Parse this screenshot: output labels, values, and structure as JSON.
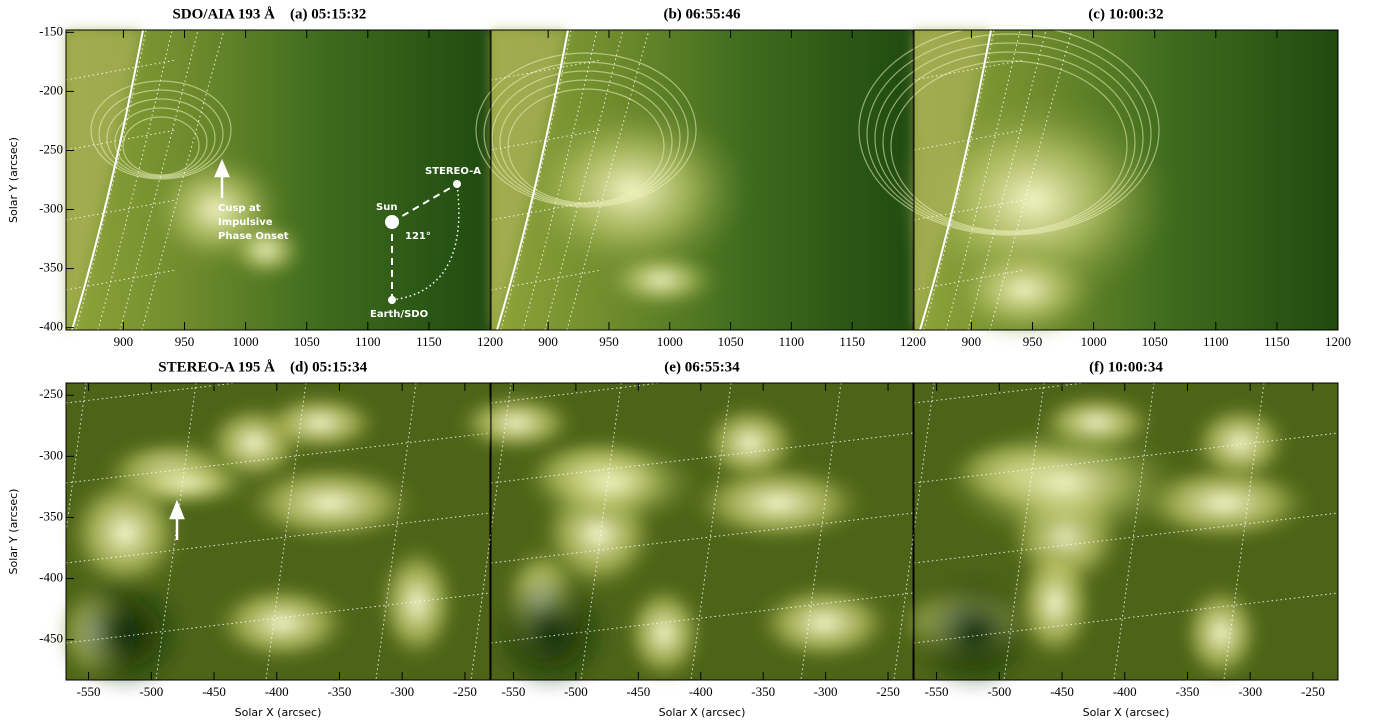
{
  "chart_data": [
    {
      "type": "image",
      "instrument": "SDO/AIA 193 Å",
      "title": "(a) 05:15:32",
      "ylabel": "Solar Y (arcsec)",
      "xlim": [
        853,
        1200
      ],
      "xticks": [
        900,
        950,
        1000,
        1050,
        1100,
        1150,
        1200
      ],
      "ylim": [
        -402,
        -148
      ],
      "yticks": [
        -150,
        -200,
        -250,
        -300,
        -350,
        -400
      ],
      "annotations": [
        "Cusp at",
        "Impulsive",
        "Phase Onset",
        "Sun",
        "121°",
        "STEREO-A",
        "Earth/SDO"
      ]
    },
    {
      "type": "image",
      "title": "(b) 06:55:46",
      "xlim": [
        853,
        1200
      ],
      "xticks": [
        900,
        950,
        1000,
        1050,
        1100,
        1150,
        1200
      ]
    },
    {
      "type": "image",
      "title": "(c) 10:00:32",
      "xlim": [
        853,
        1200
      ],
      "xticks": [
        900,
        950,
        1000,
        1050,
        1100,
        1150,
        1200
      ]
    },
    {
      "type": "image",
      "instrument": "STEREO-A 195 Å",
      "title": "(d) 05:15:34",
      "ylabel": "Solar Y (arcsec)",
      "xlabel": "Solar X (arcsec)",
      "xlim": [
        -568,
        -230
      ],
      "xticks": [
        -550,
        -500,
        -450,
        -400,
        -350,
        -300,
        -250
      ],
      "ylim": [
        -483,
        -240
      ],
      "yticks": [
        -250,
        -300,
        -350,
        -400,
        -450
      ]
    },
    {
      "type": "image",
      "title": "(e) 06:55:34",
      "xlabel": "Solar X (arcsec)",
      "xlim": [
        -568,
        -230
      ],
      "xticks": [
        -550,
        -500,
        -450,
        -400,
        -350,
        -300,
        -250
      ]
    },
    {
      "type": "image",
      "title": "(f) 10:00:34",
      "xlabel": "Solar X (arcsec)",
      "xlim": [
        -568,
        -230
      ],
      "xticks": [
        -550,
        -500,
        -450,
        -400,
        -350,
        -300,
        -250
      ]
    }
  ]
}
